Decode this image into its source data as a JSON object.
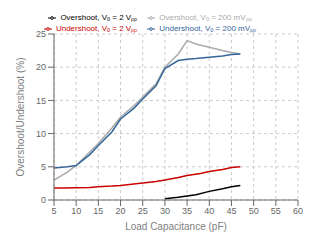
{
  "chart_data": {
    "type": "line",
    "xlabel": "Load Capacitance (pF)",
    "ylabel": "Overshoot/Undershoot (%)",
    "xlim": [
      5,
      60
    ],
    "ylim": [
      0,
      25
    ],
    "xticks": [
      5,
      10,
      15,
      20,
      25,
      30,
      35,
      40,
      45,
      50,
      55,
      60
    ],
    "yticks": [
      0,
      5,
      10,
      15,
      20,
      25
    ],
    "grid": true,
    "legend": "top",
    "series": [
      {
        "name": "Overshoot, Vₒ = 2 Vₚₚ",
        "color": "#000000",
        "x": [
          30,
          33,
          35,
          37,
          40,
          43,
          45,
          47
        ],
        "values": [
          0.2,
          0.4,
          0.6,
          0.8,
          1.3,
          1.7,
          2.0,
          2.2
        ]
      },
      {
        "name": "Undershoot, Vₒ = 2 Vₚₚ",
        "color": "#cc0000",
        "x": [
          5,
          7,
          10,
          13,
          15,
          18,
          20,
          23,
          25,
          28,
          30,
          33,
          35,
          38,
          40,
          43,
          45,
          47
        ],
        "values": [
          1.8,
          1.8,
          1.85,
          1.9,
          2.0,
          2.1,
          2.2,
          2.4,
          2.55,
          2.8,
          3.0,
          3.4,
          3.7,
          4.0,
          4.3,
          4.6,
          4.9,
          5.0
        ]
      },
      {
        "name": "Overshoot, Vₒ = 200 mVₚₚ",
        "color": "#aaaaaa",
        "x": [
          5,
          8,
          10,
          13,
          15,
          18,
          20,
          23,
          25,
          28,
          30,
          33,
          35,
          37,
          40,
          43,
          45,
          47
        ],
        "values": [
          3.0,
          4.2,
          5.2,
          7.2,
          8.5,
          10.8,
          12.5,
          14.2,
          15.5,
          17.5,
          20.0,
          22.0,
          24.0,
          23.5,
          23.0,
          22.5,
          22.2,
          22.0
        ]
      },
      {
        "name": "Undershoot, Vₒ = 200 mVₚₚ",
        "color": "#336699",
        "x": [
          5,
          8,
          10,
          13,
          15,
          18,
          20,
          23,
          25,
          28,
          30,
          33,
          35,
          37,
          40,
          43,
          45,
          47
        ],
        "values": [
          4.8,
          5.0,
          5.2,
          6.8,
          8.2,
          10.2,
          12.2,
          13.8,
          15.2,
          17.2,
          19.8,
          21.0,
          21.2,
          21.3,
          21.5,
          21.7,
          21.9,
          22.0
        ]
      }
    ]
  }
}
